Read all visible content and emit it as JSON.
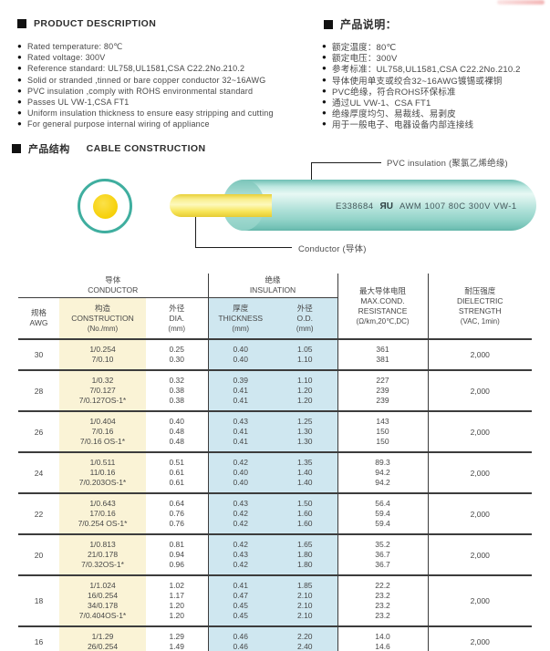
{
  "product_description": {
    "title": "PRODUCT DESCRIPTION",
    "items": [
      "Rated temperature: 80℃",
      "Rated voltage: 300V",
      "Reference standard: UL758,UL1581,CSA C22.2No.210.2",
      "Solid or stranded ,tinned or bare copper conductor 32~16AWG",
      "PVC insulation ,comply with ROHS environmental standard",
      "Passes UL VW-1,CSA FT1",
      "Uniform insulation thickness to ensure easy stripping and cutting",
      "For general purpose internal wiring of appliance"
    ]
  },
  "product_notes_cn": {
    "title": "产品说明：",
    "items": [
      "额定温度：80℃",
      "额定电压：300V",
      "参考标准：UL758,UL1581,CSA C22.2No.210.2",
      "导体使用单支或绞合32~16AWG镀锡或裸铜",
      "PVC绝缘，符合ROHS环保标准",
      "通过UL VW-1、CSA FT1",
      "绝缘厚度均匀、易裁线、易剥皮",
      "用于一般电子、电器设备内部连接线"
    ]
  },
  "construction": {
    "title_cn": "产品结构",
    "title_en": "CABLE CONSTRUCTION",
    "labels": {
      "insulation": "PVC insulation (聚氯乙烯绝缘)",
      "conductor": "Conductor (导体)"
    },
    "cable_print": {
      "cert": "E338684",
      "ul_mark": "ЯU",
      "spec": "AWM 1007 80C 300V VW-1"
    }
  },
  "table": {
    "group_headers": [
      {
        "cn": "导体",
        "en": "CONDUCTOR"
      },
      {
        "cn": "绝缘",
        "en": "INSULATION"
      }
    ],
    "columns": [
      {
        "cn": "规格",
        "en": "AWG"
      },
      {
        "cn": "构造",
        "en": "CONSTRUCTION",
        "sub": "(No./mm)"
      },
      {
        "cn": "外径",
        "en": "DIA.",
        "sub": "(mm)"
      },
      {
        "cn": "厚度",
        "en": "THICKNESS",
        "sub": "(mm)"
      },
      {
        "cn": "外径",
        "en": "O.D.",
        "sub": "(mm)"
      },
      {
        "cn": "最大导体电阻",
        "en": "MAX.COND.",
        "en2": "RESISTANCE",
        "sub": "(Ω/km,20℃,DC)"
      },
      {
        "cn": "耐压强度",
        "en": "DIELECTRIC",
        "en2": "STRENGTH",
        "sub": "(VAC, 1min)"
      }
    ],
    "groups": [
      {
        "awg": "30",
        "dielectric": "2,000",
        "rows": [
          [
            "1/0.254",
            "0.25",
            "0.40",
            "1.05",
            "361"
          ],
          [
            "7/0.10",
            "0.30",
            "0.40",
            "1.10",
            "381"
          ]
        ]
      },
      {
        "awg": "28",
        "dielectric": "2,000",
        "rows": [
          [
            "1/0.32",
            "0.32",
            "0.39",
            "1.10",
            "227"
          ],
          [
            "7/0.127",
            "0.38",
            "0.41",
            "1.20",
            "239"
          ],
          [
            "7/0.127OS-1*",
            "0.38",
            "0.41",
            "1.20",
            "239"
          ]
        ]
      },
      {
        "awg": "26",
        "dielectric": "2,000",
        "rows": [
          [
            "1/0.404",
            "0.40",
            "0.43",
            "1.25",
            "143"
          ],
          [
            "7/0.16",
            "0.48",
            "0.41",
            "1.30",
            "150"
          ],
          [
            "7/0.16 OS-1*",
            "0.48",
            "0.41",
            "1.30",
            "150"
          ]
        ]
      },
      {
        "awg": "24",
        "dielectric": "2,000",
        "rows": [
          [
            "1/0.511",
            "0.51",
            "0.42",
            "1.35",
            "89.3"
          ],
          [
            "11/0.16",
            "0.61",
            "0.40",
            "1.40",
            "94.2"
          ],
          [
            "7/0.203OS-1*",
            "0.61",
            "0.40",
            "1.40",
            "94.2"
          ]
        ]
      },
      {
        "awg": "22",
        "dielectric": "2,000",
        "rows": [
          [
            "1/0.643",
            "0.64",
            "0.43",
            "1.50",
            "56.4"
          ],
          [
            "17/0.16",
            "0.76",
            "0.42",
            "1.60",
            "59.4"
          ],
          [
            "7/0.254 OS-1*",
            "0.76",
            "0.42",
            "1.60",
            "59.4"
          ]
        ]
      },
      {
        "awg": "20",
        "dielectric": "2,000",
        "rows": [
          [
            "1/0.813",
            "0.81",
            "0.42",
            "1.65",
            "35.2"
          ],
          [
            "21/0.178",
            "0.94",
            "0.43",
            "1.80",
            "36.7"
          ],
          [
            "7/0.32OS-1*",
            "0.96",
            "0.42",
            "1.80",
            "36.7"
          ]
        ]
      },
      {
        "awg": "18",
        "dielectric": "2,000",
        "rows": [
          [
            "1/1.024",
            "1.02",
            "0.41",
            "1.85",
            "22.2"
          ],
          [
            "16/0.254",
            "1.17",
            "0.47",
            "2.10",
            "23.2"
          ],
          [
            "34/0.178",
            "1.20",
            "0.45",
            "2.10",
            "23.2"
          ],
          [
            "7/0.404OS-1*",
            "1.20",
            "0.45",
            "2.10",
            "23.2"
          ]
        ]
      },
      {
        "awg": "16",
        "dielectric": "2,000",
        "rows": [
          [
            "1/1.29",
            "1.29",
            "0.46",
            "2.20",
            "14.0"
          ],
          [
            "26/0.254",
            "1.49",
            "0.46",
            "2.40",
            "14.6"
          ]
        ]
      }
    ]
  },
  "colors": {
    "insulation_teal": "#8ccfc4",
    "conductor_yellow": "#f6d008",
    "construction_col_bg": "#faf3d6",
    "insulation_col_bg": "#cfe7f0",
    "rule_dark": "#3c3c3c"
  }
}
